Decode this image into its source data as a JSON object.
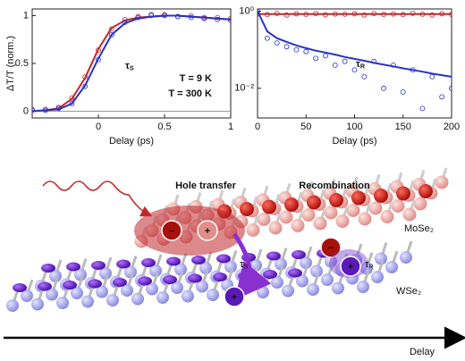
{
  "chart_data": [
    {
      "type": "line",
      "xlabel": "Delay (ps)",
      "ylabel": "ΔT/T (norm.)",
      "annotation": {
        "symbol": "τ",
        "subscript": "S"
      },
      "xlim": [
        -0.5,
        1
      ],
      "xticks": [
        0,
        0.5,
        1
      ],
      "ylim": [
        -0.07,
        1.07
      ],
      "yticks": [
        0,
        0.5,
        1
      ],
      "x": [
        -0.5,
        -0.4,
        -0.3,
        -0.2,
        -0.1,
        0,
        0.1,
        0.2,
        0.3,
        0.4,
        0.5,
        0.6,
        0.7,
        0.8,
        0.9,
        1
      ],
      "series": [
        {
          "name": "T = 9 K",
          "color": "#c0282d",
          "mode": "markers",
          "values": [
            0.01,
            0.02,
            0.04,
            0.14,
            0.36,
            0.64,
            0.86,
            0.96,
            0.99,
            1,
            1.01,
            0.99,
            1,
            0.98,
            0.98,
            0.97
          ]
        },
        {
          "color": "#c0282d",
          "mode": "line",
          "values": [
            0,
            0.01,
            0.03,
            0.13,
            0.35,
            0.65,
            0.87,
            0.95,
            0.98,
            0.99,
            1,
            1,
            0.99,
            0.98,
            0.97,
            0.96
          ]
        },
        {
          "name": "T = 300 K",
          "color": "#2733c6",
          "mode": "markers",
          "values": [
            0.02,
            0.01,
            0.03,
            0.08,
            0.26,
            0.54,
            0.8,
            0.93,
            0.98,
            1.01,
            1,
            0.99,
            0.98,
            0.97,
            0.96,
            0.95
          ]
        },
        {
          "color": "#2733c6",
          "mode": "line",
          "values": [
            0,
            0.01,
            0.02,
            0.08,
            0.27,
            0.55,
            0.8,
            0.92,
            0.97,
            0.99,
            1,
            1,
            0.99,
            0.98,
            0.97,
            0.96
          ]
        }
      ]
    },
    {
      "type": "line",
      "xlabel": "Delay (ps)",
      "log_y": true,
      "annotation": {
        "symbol": "τ",
        "subscript": "R"
      },
      "xlim": [
        0,
        200
      ],
      "xticks": [
        0,
        50,
        100,
        150,
        200
      ],
      "ylim": [
        0.0017,
        1.15
      ],
      "yticks": [
        {
          "value": 1,
          "label": "10⁰"
        },
        {
          "value": 0.01,
          "label": "10⁻²"
        }
      ],
      "x": [
        0,
        10,
        20,
        30,
        40,
        50,
        60,
        70,
        80,
        90,
        100,
        110,
        120,
        130,
        140,
        150,
        160,
        170,
        180,
        190,
        200
      ],
      "series": [
        {
          "color": "#c0282d",
          "mode": "markers",
          "values": [
            0.85,
            0.82,
            0.88,
            0.8,
            0.86,
            0.83,
            0.87,
            0.81,
            0.85,
            0.84,
            0.86,
            0.8,
            0.87,
            0.83,
            0.85,
            0.82,
            0.88,
            0.84,
            0.8,
            0.86,
            0.83
          ]
        },
        {
          "color": "#c0282d",
          "mode": "line",
          "values": [
            0.85,
            0.85,
            0.85,
            0.85,
            0.85,
            0.85,
            0.85,
            0.85,
            0.85,
            0.85,
            0.85,
            0.85,
            0.85,
            0.85,
            0.85,
            0.85,
            0.85,
            0.85,
            0.85,
            0.85,
            0.85
          ]
        },
        {
          "color": "#2733c6",
          "mode": "markers",
          "values": [
            1,
            0.2,
            0.15,
            0.12,
            0.1,
            0.09,
            0.06,
            0.07,
            0.04,
            0.05,
            0.03,
            0.02,
            0.05,
            0.01,
            0.04,
            0.008,
            0.03,
            0.003,
            0.02,
            0.006,
            0.01
          ]
        },
        {
          "color": "#2733c6",
          "mode": "line",
          "values": [
            1,
            0.3,
            0.2,
            0.16,
            0.13,
            0.11,
            0.095,
            0.085,
            0.075,
            0.065,
            0.058,
            0.052,
            0.046,
            0.041,
            0.037,
            0.033,
            0.03,
            0.027,
            0.024,
            0.022,
            0.02
          ]
        }
      ]
    }
  ],
  "diagram": {
    "hole_transfer": "Hole transfer",
    "recombination": "Recombination",
    "top_layer": "MoSe₂",
    "bottom_layer": "WSe₂",
    "electron": "−",
    "hole": "+",
    "tau_s": {
      "symbol": "τ",
      "subscript": "S"
    },
    "tau_r": {
      "symbol": "τ",
      "subscript": "R"
    },
    "axis_label": "Delay"
  }
}
